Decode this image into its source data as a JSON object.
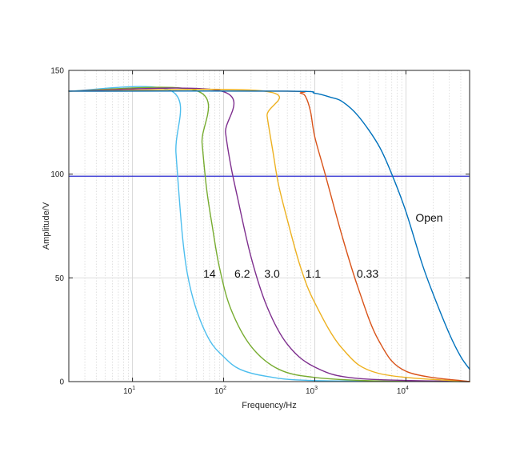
{
  "chart_data": {
    "type": "line",
    "title": "",
    "xlabel": "Frequency/Hz",
    "ylabel": "Amplitude/V",
    "xscale": "log",
    "xlim": [
      2,
      50000
    ],
    "ylim": [
      0,
      150
    ],
    "grid": true,
    "xticks": [
      {
        "value": 10,
        "base": "10",
        "exp": "1"
      },
      {
        "value": 100,
        "base": "10",
        "exp": "2"
      },
      {
        "value": 1000,
        "base": "10",
        "exp": "3"
      },
      {
        "value": 10000,
        "base": "10",
        "exp": "4"
      }
    ],
    "yticks": [
      {
        "value": 0,
        "label": "0"
      },
      {
        "value": 50,
        "label": "50"
      },
      {
        "value": 100,
        "label": "100"
      },
      {
        "value": 150,
        "label": "150"
      }
    ],
    "reference_line": {
      "y": 99,
      "color": "#2a2ad0"
    },
    "series": [
      {
        "name": "14",
        "color": "#4DBEEE",
        "x": [
          2,
          27,
          30,
          35,
          40,
          50,
          70,
          100,
          150,
          300,
          1000,
          50000
        ],
        "y": [
          140,
          140,
          110,
          72,
          52,
          35,
          20,
          12,
          6,
          2.5,
          0.5,
          0
        ]
      },
      {
        "name": "6.2",
        "color": "#77AC30",
        "x": [
          2,
          52,
          58,
          65,
          75,
          90,
          120,
          200,
          400,
          1000,
          5000,
          50000
        ],
        "y": [
          140,
          140,
          115,
          93,
          75,
          55,
          35,
          17,
          6,
          2,
          0.3,
          0
        ]
      },
      {
        "name": "3.0",
        "color": "#7E2F8E",
        "x": [
          2,
          95,
          105,
          120,
          140,
          200,
          300,
          500,
          1000,
          3000,
          50000
        ],
        "y": [
          140,
          140,
          120,
          104,
          90,
          60,
          36,
          18,
          7,
          1.5,
          0
        ]
      },
      {
        "name": "1.1",
        "color": "#EDB120",
        "x": [
          2,
          280,
          300,
          350,
          400,
          500,
          700,
          1000,
          2000,
          5000,
          50000
        ],
        "y": [
          140,
          140,
          128,
          110,
          95,
          78,
          55,
          38,
          16,
          4,
          0
        ]
      },
      {
        "name": "0.33",
        "color": "#D95319",
        "x": [
          2,
          450,
          700,
          800,
          900,
          1000,
          1300,
          2000,
          3000,
          5000,
          10000,
          50000
        ],
        "y": [
          140,
          140,
          139,
          137,
          130,
          118,
          100,
          70,
          45,
          20,
          5,
          0
        ]
      },
      {
        "name": "Open",
        "color": "#0072BD",
        "x": [
          2,
          500,
          1000,
          1500,
          2000,
          3000,
          5000,
          7000,
          10000,
          15000,
          20000,
          30000,
          40000,
          50000
        ],
        "y": [
          140,
          140,
          139,
          137,
          135,
          128,
          114,
          100,
          82,
          57,
          42,
          23,
          12,
          6
        ]
      }
    ],
    "annotations": [
      {
        "text": "14",
        "x": 70,
        "y": 52
      },
      {
        "text": "6.2",
        "x": 160,
        "y": 52
      },
      {
        "text": "3.0",
        "x": 340,
        "y": 52
      },
      {
        "text": "1.1",
        "x": 960,
        "y": 52
      },
      {
        "text": "0.33",
        "x": 3800,
        "y": 52
      },
      {
        "text": "Open",
        "x": 18000,
        "y": 79
      }
    ]
  }
}
